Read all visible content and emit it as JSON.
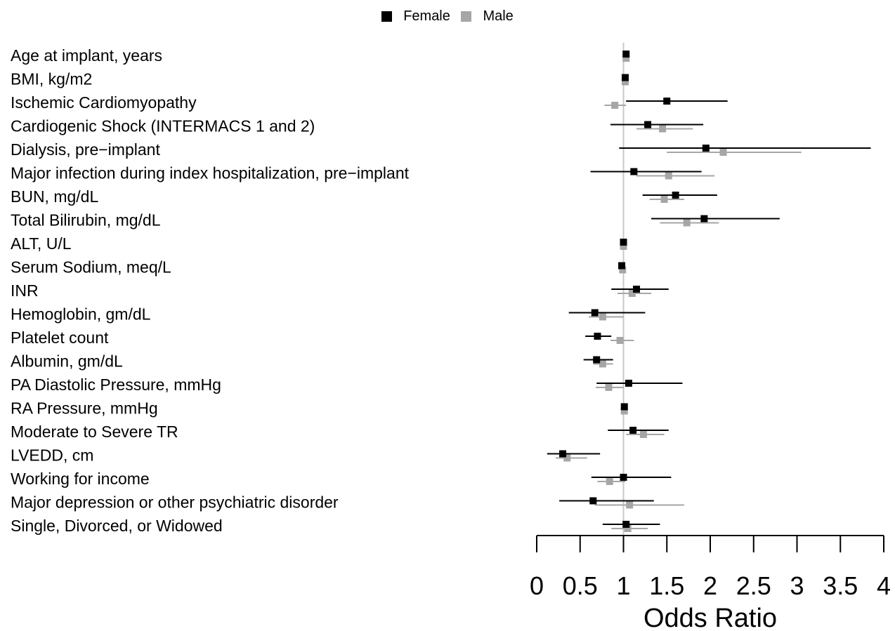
{
  "chart_data": {
    "type": "forest",
    "legend": [
      {
        "name": "Female",
        "color": "#000000"
      },
      {
        "name": "Male",
        "color": "#a6a6a6"
      }
    ],
    "xlabel": "Odds Ratio",
    "xlim": [
      0,
      4
    ],
    "xticks": [
      "0",
      "0.5",
      "1",
      "1.5",
      "2",
      "2.5",
      "3",
      "3.5",
      "4"
    ],
    "reference_line": 1,
    "legend_position": "top",
    "rows": [
      {
        "label": "Age at implant, years",
        "female": {
          "or": 1.03,
          "lo": 1.02,
          "hi": 1.04
        },
        "male": {
          "or": 1.03,
          "lo": 1.02,
          "hi": 1.04
        }
      },
      {
        "label": "BMI, kg/m2",
        "female": {
          "or": 1.02,
          "lo": 1.01,
          "hi": 1.03
        },
        "male": {
          "or": 1.02,
          "lo": 1.01,
          "hi": 1.03
        }
      },
      {
        "label": "Ischemic Cardiomyopathy",
        "female": {
          "or": 1.5,
          "lo": 1.03,
          "hi": 2.2
        },
        "male": {
          "or": 0.9,
          "lo": 0.78,
          "hi": 1.03
        }
      },
      {
        "label": "Cardiogenic Shock (INTERMACS 1 and 2)",
        "female": {
          "or": 1.28,
          "lo": 0.85,
          "hi": 1.92
        },
        "male": {
          "or": 1.45,
          "lo": 1.15,
          "hi": 1.8
        }
      },
      {
        "label": "Dialysis, pre−implant",
        "female": {
          "or": 1.95,
          "lo": 0.95,
          "hi": 3.85
        },
        "male": {
          "or": 2.15,
          "lo": 1.5,
          "hi": 3.05
        }
      },
      {
        "label": "Major infection during index hospitalization, pre−implant",
        "female": {
          "or": 1.12,
          "lo": 0.62,
          "hi": 1.9
        },
        "male": {
          "or": 1.52,
          "lo": 1.15,
          "hi": 2.05
        }
      },
      {
        "label": "BUN, mg/dL",
        "female": {
          "or": 1.6,
          "lo": 1.22,
          "hi": 2.08
        },
        "male": {
          "or": 1.47,
          "lo": 1.3,
          "hi": 1.7
        }
      },
      {
        "label": "Total Bilirubin, mg/dL",
        "female": {
          "or": 1.93,
          "lo": 1.32,
          "hi": 2.8
        },
        "male": {
          "or": 1.73,
          "lo": 1.42,
          "hi": 2.1
        }
      },
      {
        "label": "ALT, U/L",
        "female": {
          "or": 1.0,
          "lo": 0.99,
          "hi": 1.01
        },
        "male": {
          "or": 1.0,
          "lo": 0.99,
          "hi": 1.01
        }
      },
      {
        "label": "Serum Sodium, meq/L",
        "female": {
          "or": 0.98,
          "lo": 0.97,
          "hi": 0.99
        },
        "male": {
          "or": 0.99,
          "lo": 0.98,
          "hi": 1.0
        }
      },
      {
        "label": "INR",
        "female": {
          "or": 1.15,
          "lo": 0.86,
          "hi": 1.52
        },
        "male": {
          "or": 1.1,
          "lo": 0.93,
          "hi": 1.32
        }
      },
      {
        "label": "Hemoglobin, gm/dL",
        "female": {
          "or": 0.67,
          "lo": 0.37,
          "hi": 1.25
        },
        "male": {
          "or": 0.76,
          "lo": 0.6,
          "hi": 1.0
        }
      },
      {
        "label": "Platelet count",
        "female": {
          "or": 0.7,
          "lo": 0.56,
          "hi": 0.86
        },
        "male": {
          "or": 0.96,
          "lo": 0.85,
          "hi": 1.12
        }
      },
      {
        "label": "Albumin, gm/dL",
        "female": {
          "or": 0.69,
          "lo": 0.54,
          "hi": 0.88
        },
        "male": {
          "or": 0.76,
          "lo": 0.65,
          "hi": 0.88
        }
      },
      {
        "label": "PA Diastolic Pressure, mmHg",
        "female": {
          "or": 1.06,
          "lo": 0.69,
          "hi": 1.68
        },
        "male": {
          "or": 0.83,
          "lo": 0.68,
          "hi": 1.0
        }
      },
      {
        "label": "RA Pressure, mmHg",
        "female": {
          "or": 1.01,
          "lo": 1.0,
          "hi": 1.02
        },
        "male": {
          "or": 1.01,
          "lo": 1.0,
          "hi": 1.02
        }
      },
      {
        "label": "Moderate to Severe TR",
        "female": {
          "or": 1.11,
          "lo": 0.82,
          "hi": 1.52
        },
        "male": {
          "or": 1.23,
          "lo": 1.03,
          "hi": 1.47
        }
      },
      {
        "label": "LVEDD, cm",
        "female": {
          "or": 0.3,
          "lo": 0.12,
          "hi": 0.73
        },
        "male": {
          "or": 0.35,
          "lo": 0.22,
          "hi": 0.58
        }
      },
      {
        "label": "Working for income",
        "female": {
          "or": 1.0,
          "lo": 0.63,
          "hi": 1.55
        },
        "male": {
          "or": 0.84,
          "lo": 0.7,
          "hi": 1.02
        }
      },
      {
        "label": "Major depression or other psychiatric disorder",
        "female": {
          "or": 0.65,
          "lo": 0.26,
          "hi": 1.35
        },
        "male": {
          "or": 1.07,
          "lo": 0.67,
          "hi": 1.7
        }
      },
      {
        "label": "Single, Divorced, or Widowed",
        "female": {
          "or": 1.03,
          "lo": 0.76,
          "hi": 1.42
        },
        "male": {
          "or": 1.05,
          "lo": 0.86,
          "hi": 1.28
        }
      }
    ]
  }
}
